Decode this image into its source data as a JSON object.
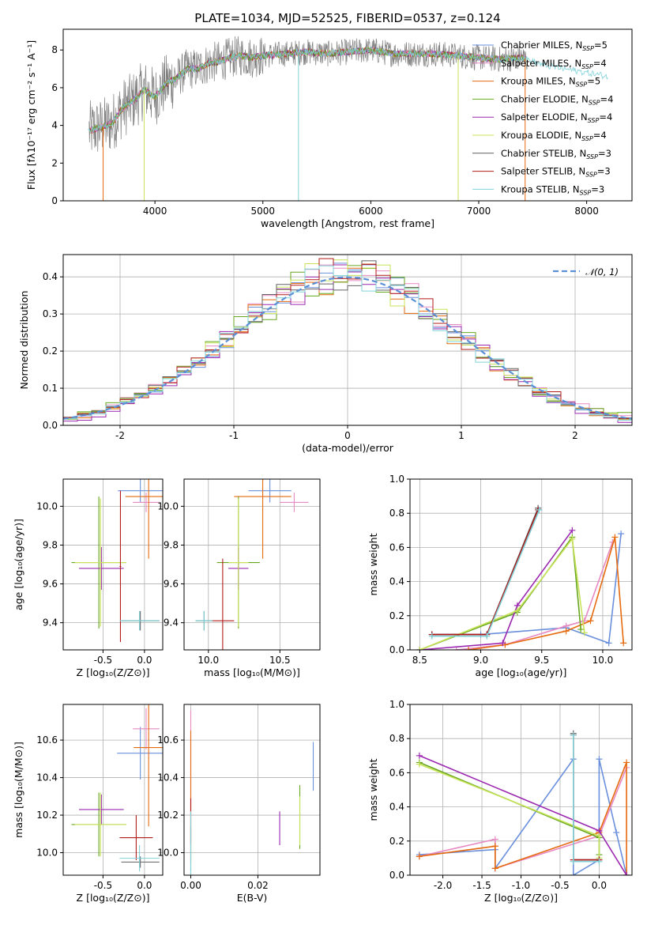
{
  "page_title": "PLATE=1034, MJD=52525, FIBERID=0537, z=0.124",
  "series": [
    {
      "key": "chab_miles",
      "name": "Chabrier MILES, N",
      "sub": "SSP",
      "suffix": "=5",
      "color": "#6a8fdc"
    },
    {
      "key": "salp_miles",
      "name": "Salpeter MILES, N",
      "sub": "SSP",
      "suffix": "=4",
      "color": "#e78ac3"
    },
    {
      "key": "krou_miles",
      "name": "Kroupa MILES, N",
      "sub": "SSP",
      "suffix": "=5",
      "color": "#e66a0e"
    },
    {
      "key": "chab_elodie",
      "name": "Chabrier ELODIE, N",
      "sub": "SSP",
      "suffix": "=4",
      "color": "#66a61e"
    },
    {
      "key": "salp_elodie",
      "name": "Salpeter ELODIE, N",
      "sub": "SSP",
      "suffix": "=4",
      "color": "#9b27b0"
    },
    {
      "key": "krou_elodie",
      "name": "Kroupa ELODIE, N",
      "sub": "SSP",
      "suffix": "=4",
      "color": "#c8e35a"
    },
    {
      "key": "chab_stelib",
      "name": "Chabrier STELIB, N",
      "sub": "SSP",
      "suffix": "=3",
      "color": "#606060"
    },
    {
      "key": "salp_stelib",
      "name": "Salpeter STELIB, N",
      "sub": "SSP",
      "suffix": "=3",
      "color": "#b21a1a"
    },
    {
      "key": "krou_stelib",
      "name": "Kroupa STELIB, N",
      "sub": "SSP",
      "suffix": "=3",
      "color": "#7fd2d8"
    }
  ],
  "chart_data": [
    {
      "id": "spectrum",
      "type": "line",
      "xlabel": "wavelength [Angstrom, rest frame]",
      "ylabel": "Flux [fλ10⁻¹⁷ erg cm⁻² s⁻¹ A⁻¹]",
      "xlim": [
        3150,
        8420
      ],
      "ylim": [
        0,
        9.1
      ],
      "xticks": [
        4000,
        5000,
        6000,
        7000,
        8000
      ],
      "yticks": [
        0,
        2,
        4,
        6,
        8
      ],
      "spectrum_x": [
        3380,
        3500,
        3600,
        3700,
        3800,
        3900,
        4000,
        4100,
        4200,
        4300,
        4400,
        4500,
        4600,
        4700,
        4800,
        4900,
        5000,
        5200,
        5400,
        5600,
        5800,
        6000,
        6200,
        6400,
        6600,
        6800,
        7000,
        7200,
        7400,
        7600,
        7800,
        8000,
        8200
      ],
      "spectrum_y": [
        3.7,
        3.9,
        4.1,
        4.9,
        5.3,
        5.9,
        5.5,
        6.2,
        6.5,
        7.0,
        7.0,
        7.3,
        7.4,
        7.6,
        7.7,
        7.6,
        7.7,
        7.8,
        7.9,
        7.8,
        7.9,
        8.0,
        7.8,
        7.8,
        7.8,
        7.7,
        7.6,
        7.5,
        7.6,
        7.2,
        7.0,
        6.8,
        6.6
      ]
    },
    {
      "id": "residuals",
      "type": "bar",
      "xlabel": "(data-model)/error",
      "ylabel": "Normed distribution",
      "xlim": [
        -2.5,
        2.5
      ],
      "ylim": [
        0,
        0.46
      ],
      "xticks": [
        -2,
        -1,
        0,
        1,
        2
      ],
      "yticks": [
        0.0,
        0.1,
        0.2,
        0.3,
        0.4
      ],
      "legend": {
        "label": "𝒩(0, 1)",
        "position": "upper right"
      },
      "curve": "gaussian N(0,1)",
      "bins": 40
    },
    {
      "id": "z-age",
      "type": "scatter",
      "xlabel": "Z [log₁₀(Z/Z⊙)]",
      "ylabel": "age  [log₁₀(age/yr)]",
      "xlim": [
        -0.98,
        0.22
      ],
      "ylim": [
        9.26,
        10.14
      ],
      "xticks": [
        -0.5,
        0.0
      ],
      "yticks": [
        9.4,
        9.6,
        9.8,
        10.0
      ],
      "points": [
        {
          "s": 0,
          "x": -0.05,
          "y": 10.08,
          "xerr": 0.27,
          "yerr": 0.06
        },
        {
          "s": 1,
          "x": 0.02,
          "y": 10.02,
          "xerr": 0.16,
          "yerr": 0.05
        },
        {
          "s": 2,
          "x": 0.05,
          "y": 10.05,
          "xerr": 0.28,
          "yerr": 0.32
        },
        {
          "s": 3,
          "x": -0.55,
          "y": 9.71,
          "xerr": 0.33,
          "yerr": 0.34
        },
        {
          "s": 4,
          "x": -0.52,
          "y": 9.68,
          "xerr": 0.27,
          "yerr": 0.11
        },
        {
          "s": 5,
          "x": -0.53,
          "y": 9.71,
          "xerr": 0.31,
          "yerr": 0.33
        },
        {
          "s": 6,
          "x": -0.05,
          "y": 9.41,
          "xerr": 0.23,
          "yerr": 0.05
        },
        {
          "s": 7,
          "x": -0.29,
          "y": 9.69,
          "xerr": 0.01,
          "yerr": 0.39
        },
        {
          "s": 8,
          "x": -0.06,
          "y": 9.41,
          "xerr": 0.24,
          "yerr": 0.05
        }
      ]
    },
    {
      "id": "mass-age",
      "type": "scatter",
      "xlabel": "mass [log₁₀(M/M⊙)]",
      "ylabel": "",
      "xlim": [
        9.83,
        10.78
      ],
      "ylim": [
        9.26,
        10.14
      ],
      "xticks": [
        10.0,
        10.5
      ],
      "yticks": [
        9.4,
        9.6,
        9.8,
        10.0
      ],
      "points": [
        {
          "s": 0,
          "x": 10.43,
          "y": 10.08,
          "xerr": 0.15,
          "yerr": 0.06
        },
        {
          "s": 1,
          "x": 10.6,
          "y": 10.02,
          "xerr": 0.1,
          "yerr": 0.05
        },
        {
          "s": 2,
          "x": 10.38,
          "y": 10.05,
          "xerr": 0.2,
          "yerr": 0.32
        },
        {
          "s": 3,
          "x": 10.21,
          "y": 9.71,
          "xerr": 0.15,
          "yerr": 0.34
        },
        {
          "s": 4,
          "x": 10.21,
          "y": 9.68,
          "xerr": 0.07,
          "yerr": 0.11
        },
        {
          "s": 5,
          "x": 10.21,
          "y": 9.71,
          "xerr": 0.07,
          "yerr": 0.33
        },
        {
          "s": 6,
          "x": 9.97,
          "y": 9.41,
          "xerr": 0.06,
          "yerr": 0.05
        },
        {
          "s": 7,
          "x": 10.1,
          "y": 9.41,
          "xerr": 0.08,
          "yerr": 0.32
        },
        {
          "s": 8,
          "x": 9.97,
          "y": 9.41,
          "xerr": 0.06,
          "yerr": 0.05
        }
      ]
    },
    {
      "id": "weights-age",
      "type": "line",
      "xlabel": "age  [log₁₀(age/yr)]",
      "ylabel": "mass weight",
      "xlim": [
        8.42,
        10.24
      ],
      "ylim": [
        0,
        1.0
      ],
      "xticks": [
        8.5,
        9.0,
        9.5,
        10.0
      ],
      "yticks": [
        0.0,
        0.2,
        0.4,
        0.6,
        0.8,
        1.0
      ],
      "series_points": [
        {
          "s": 0,
          "x": [
            8.6,
            9.0,
            9.7,
            10.05,
            10.15
          ],
          "y": [
            0.09,
            0.09,
            0.13,
            0.04,
            0.68
          ]
        },
        {
          "s": 1,
          "x": [
            8.8,
            9.2,
            9.7,
            9.85,
            10.08
          ],
          "y": [
            0.0,
            0.03,
            0.14,
            0.17,
            0.63
          ]
        },
        {
          "s": 2,
          "x": [
            8.9,
            9.2,
            9.7,
            9.9,
            10.1,
            10.17
          ],
          "y": [
            0.0,
            0.03,
            0.11,
            0.17,
            0.66,
            0.04
          ]
        },
        {
          "s": 3,
          "x": [
            8.5,
            9.3,
            9.75,
            9.82
          ],
          "y": [
            0.0,
            0.22,
            0.66,
            0.12
          ]
        },
        {
          "s": 4,
          "x": [
            8.5,
            9.18,
            9.3,
            9.75
          ],
          "y": [
            0.0,
            0.04,
            0.26,
            0.7
          ]
        },
        {
          "s": 5,
          "x": [
            8.5,
            9.3,
            9.75,
            9.85
          ],
          "y": [
            0.0,
            0.23,
            0.65,
            0.1
          ]
        },
        {
          "s": 6,
          "x": [
            8.6,
            9.05,
            9.47
          ],
          "y": [
            0.09,
            0.09,
            0.83
          ]
        },
        {
          "s": 7,
          "x": [
            8.6,
            9.05,
            9.47
          ],
          "y": [
            0.09,
            0.09,
            0.82
          ]
        },
        {
          "s": 8,
          "x": [
            8.6,
            9.05,
            9.48
          ],
          "y": [
            0.08,
            0.08,
            0.82
          ]
        }
      ]
    },
    {
      "id": "z-mass",
      "type": "scatter",
      "xlabel": "Z [log₁₀(Z/Z⊙)]",
      "ylabel": "mass [log₁₀(M/M⊙)]",
      "xlim": [
        -0.98,
        0.22
      ],
      "ylim": [
        9.88,
        10.79
      ],
      "xticks": [
        -0.5,
        0.0
      ],
      "yticks": [
        10.0,
        10.2,
        10.4,
        10.6
      ],
      "points": [
        {
          "s": 0,
          "x": -0.05,
          "y": 10.53,
          "xerr": 0.28,
          "yerr": 0.14
        },
        {
          "s": 1,
          "x": 0.02,
          "y": 10.66,
          "xerr": 0.16,
          "yerr": 0.11
        },
        {
          "s": 2,
          "x": 0.05,
          "y": 10.56,
          "xerr": 0.18,
          "yerr": 0.42
        },
        {
          "s": 3,
          "x": -0.55,
          "y": 10.15,
          "xerr": 0.33,
          "yerr": 0.17
        },
        {
          "s": 4,
          "x": -0.52,
          "y": 10.23,
          "xerr": 0.27,
          "yerr": 0.08
        },
        {
          "s": 5,
          "x": -0.53,
          "y": 10.15,
          "xerr": 0.31,
          "yerr": 0.17
        },
        {
          "s": 6,
          "x": -0.05,
          "y": 9.95,
          "xerr": 0.23,
          "yerr": 0.03
        },
        {
          "s": 7,
          "x": -0.1,
          "y": 10.08,
          "xerr": 0.2,
          "yerr": 0.12
        },
        {
          "s": 8,
          "x": -0.06,
          "y": 9.97,
          "xerr": 0.24,
          "yerr": 0.07
        }
      ]
    },
    {
      "id": "ebv-mass",
      "type": "scatter",
      "xlabel": "E(B-V)",
      "ylabel": "",
      "xlim": [
        -0.002,
        0.0385
      ],
      "ylim": [
        9.88,
        10.79
      ],
      "xticks": [
        0.0,
        0.02
      ],
      "yticks": [
        10.0,
        10.2,
        10.4,
        10.6
      ],
      "points": [
        {
          "s": 0,
          "x": 0.0365,
          "y": 10.46,
          "xerr": 0,
          "yerr": 0.13
        },
        {
          "s": 1,
          "x": 0.0,
          "y": 10.4,
          "xerr": 0,
          "yerr": 0.36
        },
        {
          "s": 2,
          "x": 0.0,
          "y": 10.3,
          "xerr": 0,
          "yerr": 0.35
        },
        {
          "s": 3,
          "x": 0.0325,
          "y": 10.19,
          "xerr": 0,
          "yerr": 0.17
        },
        {
          "s": 4,
          "x": 0.0265,
          "y": 10.13,
          "xerr": 0,
          "yerr": 0.09
        },
        {
          "s": 5,
          "x": 0.0325,
          "y": 10.17,
          "xerr": 0,
          "yerr": 0.13
        },
        {
          "s": 6,
          "x": 0.0,
          "y": 10.02,
          "xerr": 0,
          "yerr": 0.12
        },
        {
          "s": 7,
          "x": 0.0,
          "y": 10.17,
          "xerr": 0,
          "yerr": 0.12
        },
        {
          "s": 8,
          "x": 0.0,
          "y": 10.05,
          "xerr": 0,
          "yerr": 0.17
        }
      ]
    },
    {
      "id": "weights-z",
      "type": "line",
      "xlabel": "Z [log₁₀(Z/Z⊙)]",
      "ylabel": "mass weight",
      "xlim": [
        -2.42,
        0.42
      ],
      "ylim": [
        0,
        1.0
      ],
      "xticks": [
        -2.0,
        -1.5,
        -1.0,
        -0.5,
        0.0
      ],
      "yticks": [
        0.0,
        0.2,
        0.4,
        0.6,
        0.8,
        1.0
      ],
      "series_points": [
        {
          "s": 0,
          "x": [
            -2.3,
            -1.33,
            -1.33,
            -0.33,
            -0.33,
            0.0,
            0.0,
            0.22,
            0.35
          ],
          "y": [
            0.12,
            0.15,
            0.04,
            0.68,
            0.0,
            0.09,
            0.68,
            0.25,
            0.0
          ]
        },
        {
          "s": 1,
          "x": [
            -2.3,
            -1.33,
            -1.33,
            0.0,
            0.35
          ],
          "y": [
            0.11,
            0.21,
            0.04,
            0.23,
            0.63
          ]
        },
        {
          "s": 2,
          "x": [
            -2.3,
            -1.33,
            -1.33,
            0.0,
            0.35,
            0.35
          ],
          "y": [
            0.11,
            0.17,
            0.04,
            0.25,
            0.66,
            0.0
          ]
        },
        {
          "s": 3,
          "x": [
            -2.3,
            0.0,
            0.0
          ],
          "y": [
            0.66,
            0.22,
            0.12
          ]
        },
        {
          "s": 4,
          "x": [
            -2.3,
            0.0,
            0.35
          ],
          "y": [
            0.7,
            0.26,
            0.0
          ]
        },
        {
          "s": 5,
          "x": [
            -2.3,
            0.0,
            0.0
          ],
          "y": [
            0.65,
            0.23,
            0.1
          ]
        },
        {
          "s": 6,
          "x": [
            -0.33,
            -0.33,
            0.0
          ],
          "y": [
            0.83,
            0.09,
            0.09
          ]
        },
        {
          "s": 7,
          "x": [
            -0.33,
            -0.33,
            0.0
          ],
          "y": [
            0.82,
            0.09,
            0.09
          ]
        },
        {
          "s": 8,
          "x": [
            -0.33,
            -0.33,
            0.0
          ],
          "y": [
            0.82,
            0.08,
            0.08
          ]
        }
      ]
    }
  ]
}
